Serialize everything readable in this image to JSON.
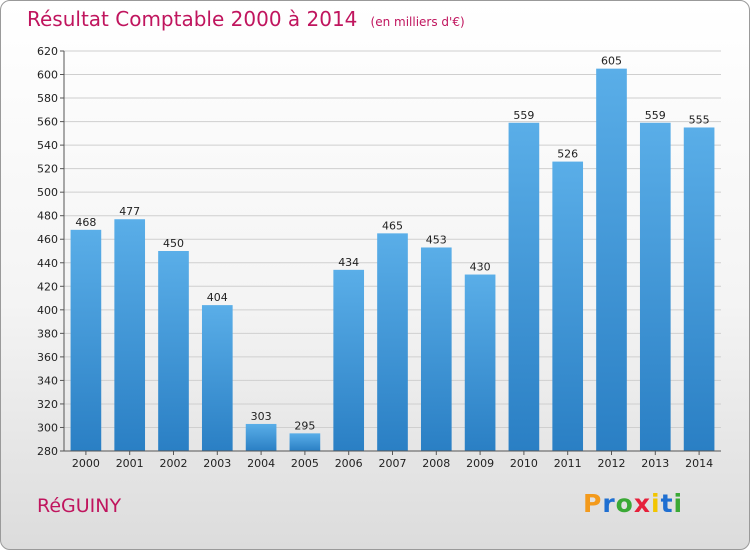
{
  "title": "Résultat Comptable 2000 à 2014",
  "unit": "(en milliers d'€)",
  "commune": "RéGUINY",
  "brand": {
    "letters": [
      "P",
      "r",
      "o",
      "x",
      "i",
      "t",
      "i"
    ],
    "colors": [
      "#f39a1c",
      "#1f6fd1",
      "#3aa935",
      "#e6203a",
      "#f2c500",
      "#1f6fd1",
      "#3aa935"
    ]
  },
  "colors": {
    "title": "#c0155e",
    "bar_top": "#5aaee8",
    "bar_bottom": "#2a7fc4",
    "grid": "#cfcfcf"
  },
  "chart_data": {
    "type": "bar",
    "title": "Résultat Comptable 2000 à 2014",
    "subtitle": "(en milliers d'€)",
    "xlabel": "",
    "ylabel": "",
    "categories": [
      "2000",
      "2001",
      "2002",
      "2003",
      "2004",
      "2005",
      "2006",
      "2007",
      "2008",
      "2009",
      "2010",
      "2011",
      "2012",
      "2013",
      "2014"
    ],
    "values": [
      468,
      477,
      450,
      404,
      303,
      295,
      434,
      465,
      453,
      430,
      559,
      526,
      605,
      559,
      555
    ],
    "ylim": [
      280,
      620
    ],
    "yticks": [
      280,
      300,
      320,
      340,
      360,
      380,
      400,
      420,
      440,
      460,
      480,
      500,
      520,
      540,
      560,
      580,
      600,
      620
    ],
    "grid": true,
    "data_labels": true
  }
}
